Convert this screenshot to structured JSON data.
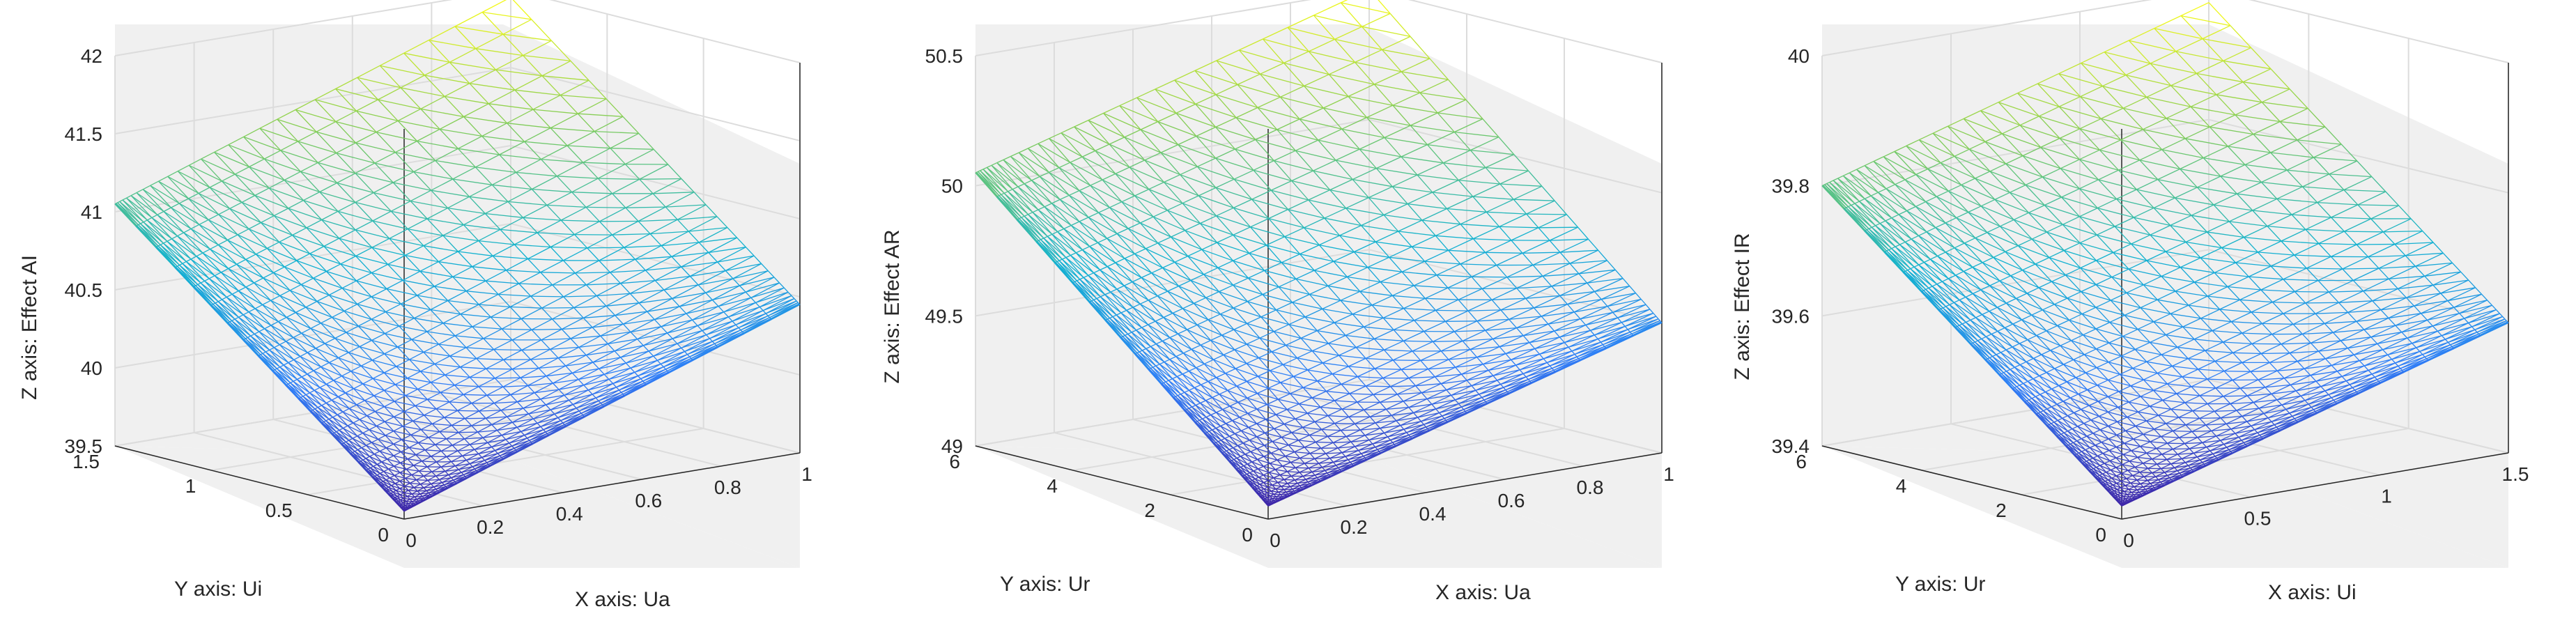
{
  "chart_data": [
    {
      "type": "surface",
      "colormap": "parula",
      "grid": true,
      "xlabel": "X axis: Ua",
      "ylabel": "Y axis: Ui",
      "zlabel": "Z axis: Effect AI",
      "xlim": [
        0,
        1
      ],
      "ylim": [
        0,
        1.5
      ],
      "zlim": [
        39.5,
        42
      ],
      "xticks": [
        "0",
        "0.2",
        "0.4",
        "0.6",
        "0.8",
        "1"
      ],
      "yticks": [
        "0",
        "0.5",
        "1",
        "1.5"
      ],
      "zticks": [
        "39.5",
        "40",
        "40.5",
        "41",
        "41.5",
        "42"
      ],
      "corner_values": {
        "x0_y0": 39.55,
        "x1_y0": 40.45,
        "x0_y1_5": 41.05,
        "x1_y1_5": 41.95
      }
    },
    {
      "type": "surface",
      "colormap": "parula",
      "grid": true,
      "xlabel": "X axis: Ua",
      "ylabel": "Y axis: Ur",
      "zlabel": "Z axis: Effect AR",
      "xlim": [
        0,
        1
      ],
      "ylim": [
        0,
        6
      ],
      "zlim": [
        49,
        50.5
      ],
      "xticks": [
        "0",
        "0.2",
        "0.4",
        "0.6",
        "0.8",
        "1"
      ],
      "yticks": [
        "0",
        "2",
        "4",
        "6"
      ],
      "zticks": [
        "49",
        "49.5",
        "50",
        "50.5"
      ],
      "corner_values": {
        "x0_y0": 49.05,
        "x1_y0": 49.5,
        "x0_y6": 50.05,
        "x1_y6": 50.5
      }
    },
    {
      "type": "surface",
      "colormap": "parula",
      "grid": true,
      "xlabel": "X axis: Ui",
      "ylabel": "Y axis: Ur",
      "zlabel": "Z axis: Effect IR",
      "xlim": [
        0,
        1.5
      ],
      "ylim": [
        0,
        6
      ],
      "zlim": [
        39.4,
        40
      ],
      "xticks": [
        "0",
        "0.5",
        "1",
        "1.5"
      ],
      "yticks": [
        "0",
        "2",
        "4",
        "6"
      ],
      "zticks": [
        "39.4",
        "39.6",
        "39.8",
        "40"
      ],
      "corner_values": {
        "x0_y0": 39.42,
        "x1_5_y0": 39.6,
        "x0_y6": 39.8,
        "x1_5_y6": 39.98
      }
    }
  ]
}
